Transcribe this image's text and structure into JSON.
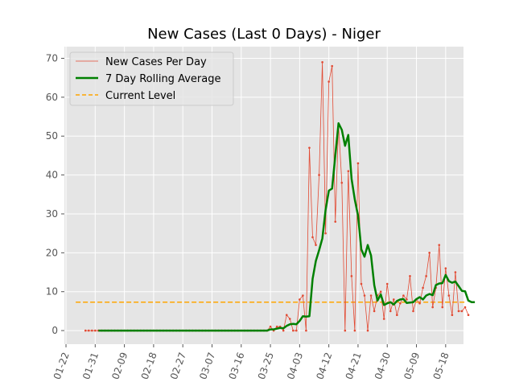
{
  "chart_data": {
    "type": "line",
    "title": "New Cases (Last 0 Days) - Niger",
    "xlabel": "",
    "ylabel": "",
    "x_tick_labels": [
      "01-22",
      "01-31",
      "02-09",
      "02-18",
      "02-27",
      "03-07",
      "03-16",
      "03-25",
      "04-03",
      "04-12",
      "04-21",
      "04-30",
      "05-09",
      "05-18"
    ],
    "x_tick_days": [
      0,
      9,
      18,
      27,
      36,
      45,
      54,
      63,
      72,
      81,
      90,
      99,
      108,
      117
    ],
    "x_range_days": [
      -0.5,
      122.5
    ],
    "ylim": [
      -3.5,
      73
    ],
    "y_ticks": [
      0,
      10,
      20,
      30,
      40,
      50,
      60,
      70
    ],
    "grid": true,
    "legend_position": "top-left",
    "colors": {
      "daily": "#e24a33",
      "rolling": "#008000",
      "current": "#ffa500",
      "plot_bg": "#e5e5e5",
      "grid": "#ffffff"
    },
    "series": [
      {
        "name": "New Cases Per Day",
        "start_day": 6,
        "values": [
          0,
          0,
          0,
          0,
          0,
          0,
          0,
          0,
          0,
          0,
          0,
          0,
          0,
          0,
          0,
          0,
          0,
          0,
          0,
          0,
          0,
          0,
          0,
          0,
          0,
          0,
          0,
          0,
          0,
          0,
          0,
          0,
          0,
          0,
          0,
          0,
          0,
          0,
          0,
          0,
          0,
          0,
          0,
          0,
          0,
          0,
          0,
          0,
          0,
          0,
          0,
          0,
          0,
          0,
          0,
          0,
          0,
          1,
          0,
          1,
          1,
          0,
          4,
          3,
          0,
          0,
          8,
          9,
          0,
          47,
          24,
          22,
          40,
          69,
          25,
          64,
          68,
          28,
          53,
          38,
          0,
          41,
          14,
          0,
          43,
          12,
          9,
          0,
          9,
          5,
          9,
          10,
          3,
          12,
          5,
          8,
          4,
          7,
          9,
          8,
          14,
          5,
          8,
          7,
          11,
          14,
          20,
          6,
          11,
          22,
          6,
          16,
          9,
          4,
          15,
          5,
          5,
          6,
          4
        ]
      },
      {
        "name": "7 Day Rolling Average",
        "start_day": 10,
        "values": [
          0,
          0,
          0,
          0,
          0,
          0,
          0,
          0,
          0,
          0,
          0,
          0,
          0,
          0,
          0,
          0,
          0,
          0,
          0,
          0,
          0,
          0,
          0,
          0,
          0,
          0,
          0,
          0,
          0,
          0,
          0,
          0,
          0,
          0,
          0,
          0,
          0,
          0,
          0,
          0,
          0,
          0,
          0,
          0,
          0,
          0,
          0,
          0,
          0,
          0,
          0,
          0,
          0,
          0.3,
          0.3,
          0.5,
          0.7,
          0.6,
          1.2,
          1.6,
          1.7,
          1.6,
          2.5,
          3.7,
          3.6,
          3.7,
          13.3,
          17.9,
          20.7,
          23.7,
          31,
          36,
          36.5,
          45,
          53.3,
          51.6,
          47.5,
          50.3,
          39,
          33.7,
          29.6,
          20.9,
          19,
          22,
          19.3,
          11.7,
          7.7,
          9.3,
          6.6,
          7,
          7.3,
          6.7,
          7.6,
          8,
          8.1,
          7.1,
          7.2,
          7.3,
          8.1,
          8.6,
          8,
          9,
          9.4,
          9.1,
          11.7,
          12.1,
          12.2,
          14.3,
          12.7,
          12.3,
          12.6,
          11.4,
          10.2,
          10.1,
          7.7,
          7.3,
          7.3
        ]
      },
      {
        "name": "Current Level",
        "value": 7.3,
        "x_start_day": 3,
        "x_end_day": 123
      }
    ]
  }
}
